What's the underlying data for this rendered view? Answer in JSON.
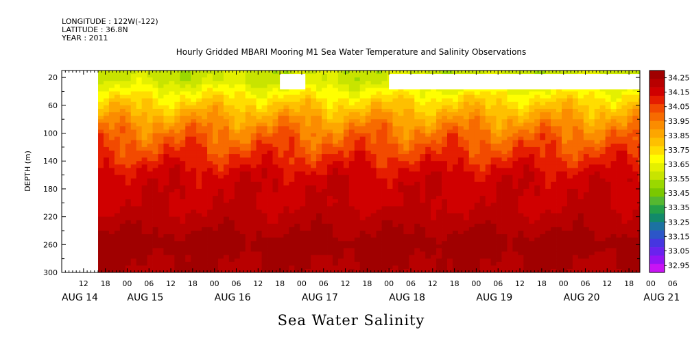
{
  "header": {
    "longitude": "LONGITUDE : 122W(-122)",
    "latitude": "LATITUDE : 36.8N",
    "year": "YEAR : 2011",
    "title": "Hourly Gridded MBARI Mooring M1 Sea Water Temperature and Salinity Observations"
  },
  "caption": "Sea Water Salinity",
  "chart_data": {
    "type": "heatmap",
    "title": "Hourly Gridded MBARI Mooring M1 Sea Water Temperature and Salinity Observations",
    "ylabel": "DEPTH (m)",
    "xlabel": "",
    "ylim": [
      300,
      10
    ],
    "y_axis_inverted": true,
    "xlim_hours": [
      -18,
      141
    ],
    "data_start_hour": -8,
    "y_ticks": [
      20,
      60,
      100,
      140,
      180,
      220,
      260,
      300
    ],
    "hour_ticks": [
      {
        "h": -12,
        "label": "12"
      },
      {
        "h": -6,
        "label": "18"
      },
      {
        "h": 0,
        "label": "00"
      },
      {
        "h": 6,
        "label": "06"
      },
      {
        "h": 12,
        "label": "12"
      },
      {
        "h": 18,
        "label": "18"
      },
      {
        "h": 24,
        "label": "00"
      },
      {
        "h": 30,
        "label": "06"
      },
      {
        "h": 36,
        "label": "12"
      },
      {
        "h": 42,
        "label": "18"
      },
      {
        "h": 48,
        "label": "00"
      },
      {
        "h": 54,
        "label": "06"
      },
      {
        "h": 60,
        "label": "12"
      },
      {
        "h": 66,
        "label": "18"
      },
      {
        "h": 72,
        "label": "00"
      },
      {
        "h": 78,
        "label": "06"
      },
      {
        "h": 84,
        "label": "12"
      },
      {
        "h": 90,
        "label": "18"
      },
      {
        "h": 96,
        "label": "00"
      },
      {
        "h": 102,
        "label": "06"
      },
      {
        "h": 108,
        "label": "12"
      },
      {
        "h": 114,
        "label": "18"
      },
      {
        "h": 120,
        "label": "00"
      },
      {
        "h": 126,
        "label": "06"
      },
      {
        "h": 132,
        "label": "12"
      },
      {
        "h": 138,
        "label": "18"
      },
      {
        "h": 144,
        "label": "00"
      },
      {
        "h": 150,
        "label": "06"
      }
    ],
    "day_labels": [
      {
        "h": -18,
        "label": "AUG 14"
      },
      {
        "h": 0,
        "label": "AUG 15"
      },
      {
        "h": 24,
        "label": "AUG 16"
      },
      {
        "h": 48,
        "label": "AUG 17"
      },
      {
        "h": 72,
        "label": "AUG 18"
      },
      {
        "h": 96,
        "label": "AUG 19"
      },
      {
        "h": 120,
        "label": "AUG 20"
      },
      {
        "h": 142,
        "label": "AUG 21"
      }
    ],
    "missing_blocks": [
      {
        "h0": 42,
        "h1": 49,
        "d0": 15,
        "d1": 37
      },
      {
        "h0": 72,
        "h1": 141,
        "d0": 15,
        "d1": 37
      }
    ],
    "depth_profile": [
      {
        "depth": 10,
        "value": 33.6
      },
      {
        "depth": 25,
        "value": 33.62
      },
      {
        "depth": 40,
        "value": 33.7
      },
      {
        "depth": 55,
        "value": 33.78
      },
      {
        "depth": 70,
        "value": 33.85
      },
      {
        "depth": 85,
        "value": 33.92
      },
      {
        "depth": 100,
        "value": 33.98
      },
      {
        "depth": 120,
        "value": 34.04
      },
      {
        "depth": 140,
        "value": 34.1
      },
      {
        "depth": 160,
        "value": 34.16
      },
      {
        "depth": 180,
        "value": 34.18
      },
      {
        "depth": 200,
        "value": 34.18
      },
      {
        "depth": 220,
        "value": 34.21
      },
      {
        "depth": 240,
        "value": 34.24
      },
      {
        "depth": 260,
        "value": 34.28
      },
      {
        "depth": 280,
        "value": 34.25
      },
      {
        "depth": 300,
        "value": 34.24
      }
    ],
    "colorbar": {
      "levels": [
        "34.25",
        "34.15",
        "34.05",
        "33.95",
        "33.85",
        "33.75",
        "33.65",
        "33.55",
        "33.45",
        "33.35",
        "33.25",
        "33.15",
        "33.05",
        "32.95"
      ],
      "colors": [
        "#a00000",
        "#b80000",
        "#d00000",
        "#e51d00",
        "#f24a00",
        "#f76b00",
        "#fb8c00",
        "#fda600",
        "#fec000",
        "#ffdd00",
        "#ffff00",
        "#e4f000",
        "#c8e400",
        "#9ad800",
        "#7bc800",
        "#55b830",
        "#24a048",
        "#128a6a",
        "#1c72a2",
        "#2c56c8",
        "#4636e0",
        "#6a22ee",
        "#9414f4",
        "#c814f4"
      ],
      "min": 32.95,
      "max": 34.3
    }
  }
}
